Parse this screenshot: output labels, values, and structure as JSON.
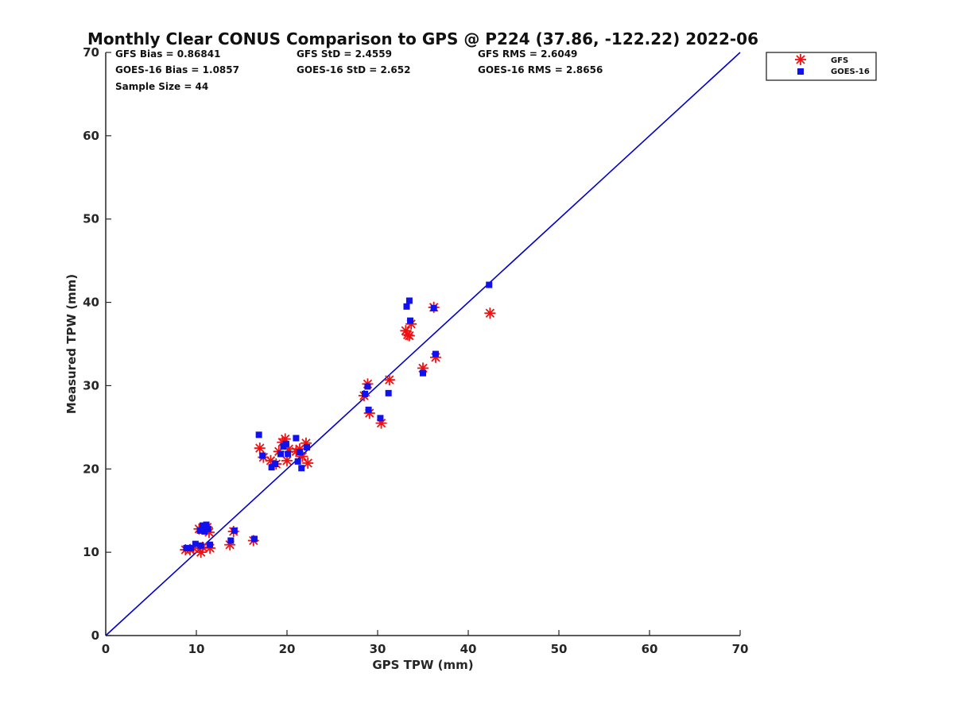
{
  "chart_data": {
    "type": "scatter",
    "title": "Monthly Clear CONUS Comparison to GPS @ P224 (37.86, -122.22) 2022-06",
    "xlabel": "GPS TPW (mm)",
    "ylabel": "Measured TPW (mm)",
    "xlim": [
      0,
      70
    ],
    "ylim": [
      0,
      70
    ],
    "xticks": [
      0,
      10,
      20,
      30,
      40,
      50,
      60,
      70
    ],
    "yticks": [
      0,
      10,
      20,
      30,
      40,
      50,
      60,
      70
    ],
    "grid": false,
    "legend_position": "top-right outside",
    "stats": {
      "gfs_bias": "GFS Bias = 0.86841",
      "gfs_std": "GFS StD = 2.4559",
      "gfs_rms": "GFS RMS = 2.6049",
      "goes_bias": "GOES-16 Bias = 1.0857",
      "goes_std": "GOES-16 StD = 2.652",
      "goes_rms": "GOES-16 RMS = 2.8656",
      "sample": "Sample Size = 44"
    },
    "reference_line": {
      "name": "1:1 line",
      "x": [
        0,
        70
      ],
      "y": [
        0,
        70
      ],
      "color": "#0000cc"
    },
    "series": [
      {
        "name": "GFS",
        "marker": "asterisk",
        "color": "#ee1111",
        "points": [
          [
            8.8,
            10.3
          ],
          [
            9.3,
            10.3
          ],
          [
            9.7,
            10.5
          ],
          [
            10.3,
            12.8
          ],
          [
            10.5,
            10.0
          ],
          [
            10.7,
            10.6
          ],
          [
            10.9,
            12.8
          ],
          [
            11.2,
            13.0
          ],
          [
            11.4,
            12.4
          ],
          [
            11.5,
            10.5
          ],
          [
            13.7,
            10.9
          ],
          [
            14.1,
            12.5
          ],
          [
            16.3,
            11.4
          ],
          [
            17.0,
            22.5
          ],
          [
            17.4,
            21.4
          ],
          [
            18.2,
            21.0
          ],
          [
            18.8,
            20.6
          ],
          [
            19.1,
            22.1
          ],
          [
            19.5,
            23.2
          ],
          [
            19.8,
            23.6
          ],
          [
            20.0,
            21.0
          ],
          [
            20.2,
            22.4
          ],
          [
            21.0,
            22.1
          ],
          [
            21.4,
            22.4
          ],
          [
            21.7,
            21.5
          ],
          [
            22.1,
            23.1
          ],
          [
            22.3,
            20.7
          ],
          [
            28.5,
            28.8
          ],
          [
            28.9,
            30.2
          ],
          [
            29.1,
            26.7
          ],
          [
            30.4,
            25.5
          ],
          [
            31.3,
            30.7
          ],
          [
            33.1,
            36.6
          ],
          [
            33.3,
            36.1
          ],
          [
            33.5,
            36.0
          ],
          [
            33.7,
            37.4
          ],
          [
            35.0,
            32.1
          ],
          [
            36.2,
            39.4
          ],
          [
            36.4,
            33.4
          ],
          [
            42.4,
            38.7
          ]
        ]
      },
      {
        "name": "GOES-16",
        "marker": "square",
        "color": "#1111ee",
        "points": [
          [
            8.9,
            10.5
          ],
          [
            9.4,
            10.5
          ],
          [
            9.9,
            11.0
          ],
          [
            10.4,
            12.6
          ],
          [
            10.5,
            10.8
          ],
          [
            10.7,
            13.2
          ],
          [
            10.9,
            12.5
          ],
          [
            11.1,
            13.3
          ],
          [
            11.3,
            12.8
          ],
          [
            11.5,
            10.9
          ],
          [
            13.8,
            11.4
          ],
          [
            14.2,
            12.6
          ],
          [
            16.4,
            11.6
          ],
          [
            16.9,
            24.1
          ],
          [
            17.3,
            21.6
          ],
          [
            18.3,
            20.2
          ],
          [
            18.7,
            20.6
          ],
          [
            19.3,
            21.8
          ],
          [
            19.6,
            22.7
          ],
          [
            19.9,
            23.0
          ],
          [
            20.1,
            21.8
          ],
          [
            21.0,
            23.7
          ],
          [
            21.2,
            20.9
          ],
          [
            21.4,
            22.0
          ],
          [
            21.6,
            20.1
          ],
          [
            22.2,
            22.6
          ],
          [
            28.6,
            29.0
          ],
          [
            28.9,
            29.9
          ],
          [
            29.0,
            27.1
          ],
          [
            30.3,
            26.1
          ],
          [
            31.2,
            29.1
          ],
          [
            33.2,
            39.5
          ],
          [
            33.5,
            40.2
          ],
          [
            33.6,
            37.8
          ],
          [
            35.0,
            31.5
          ],
          [
            36.2,
            39.3
          ],
          [
            36.4,
            33.8
          ],
          [
            42.3,
            42.1
          ]
        ]
      }
    ]
  },
  "legend": {
    "entries": [
      {
        "label": "GFS",
        "marker": "asterisk",
        "color": "#ee1111"
      },
      {
        "label": "GOES-16",
        "marker": "square",
        "color": "#1111ee"
      }
    ]
  }
}
